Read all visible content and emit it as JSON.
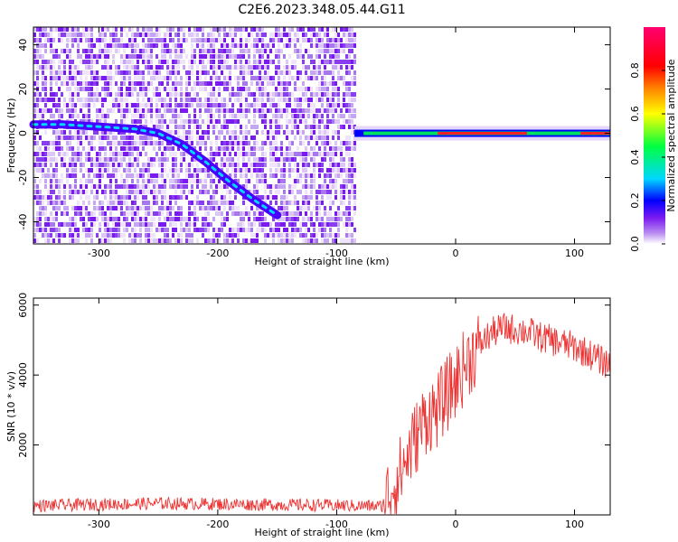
{
  "title": "C2E6.2023.348.05.44.G11",
  "chart_data": [
    {
      "type": "heatmap",
      "xlabel": "Height of straight line (km)",
      "ylabel": "Frequency (Hz)",
      "xlim": [
        -355,
        130
      ],
      "ylim": [
        -50,
        48
      ],
      "x_ticks": [
        -300,
        -200,
        -100,
        0,
        100
      ],
      "y_ticks": [
        -40,
        -20,
        0,
        20,
        40
      ],
      "colorbar": {
        "label": "Normalized spectral amplitude",
        "range": [
          0.0,
          1.0
        ],
        "ticks": [
          0.0,
          0.2,
          0.4,
          0.6,
          0.8
        ],
        "tick_labels": [
          "0.0",
          "0.2",
          "0.4",
          "0.6",
          "0.8"
        ],
        "colors": [
          "#ffffff",
          "#b98cf0",
          "#7a1af0",
          "#4a00ff",
          "#0000ff",
          "#00d8ff",
          "#00ff40",
          "#ffff00",
          "#ff8000",
          "#ff0000",
          "#ff0070"
        ]
      },
      "features": {
        "noise_region_x": [
          -355,
          -85
        ],
        "doppler_line": {
          "x": [
            -355,
            -330,
            -300,
            -270,
            -250,
            -230,
            -210,
            -190,
            -170,
            -150
          ],
          "y": [
            4,
            4,
            3,
            2,
            0,
            -5,
            -13,
            -22,
            -30,
            -37
          ]
        },
        "carrier_line": {
          "x": [
            -85,
            130
          ],
          "y": 0
        }
      }
    },
    {
      "type": "line",
      "xlabel": "Height of straight line (km)",
      "ylabel": "SNR (10 * v/v)",
      "xlim": [
        -355,
        130
      ],
      "ylim": [
        0,
        6200
      ],
      "x_ticks": [
        -300,
        -200,
        -100,
        0,
        100
      ],
      "y_ticks": [
        2000,
        4000,
        6000
      ],
      "series": [
        {
          "color": "#ee3333",
          "x": [
            -355,
            -300,
            -250,
            -200,
            -150,
            -100,
            -62,
            -55,
            -45,
            -35,
            -25,
            -15,
            -10,
            0,
            10,
            20,
            30,
            40,
            50,
            60,
            70,
            80,
            90,
            100,
            110,
            120,
            130
          ],
          "y": [
            260,
            300,
            330,
            310,
            290,
            270,
            250,
            700,
            1300,
            2100,
            2800,
            3000,
            3300,
            3800,
            4400,
            4850,
            5200,
            5350,
            5300,
            5250,
            5100,
            5000,
            4900,
            4800,
            4650,
            4450,
            4300
          ]
        }
      ]
    }
  ],
  "colors": {
    "noise_sparse": "#dcc8f7",
    "noise_dense": "#7a1af0",
    "snr_line": "#ee3333"
  }
}
